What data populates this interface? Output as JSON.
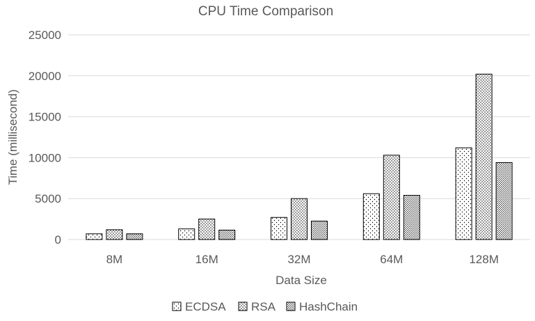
{
  "chart_data": {
    "type": "bar",
    "title": "CPU Time Comparison",
    "xlabel": "Data Size",
    "ylabel": "Time (millisecond)",
    "categories": [
      "8M",
      "16M",
      "32M",
      "64M",
      "128M"
    ],
    "ylim": [
      0,
      25000
    ],
    "yticks": [
      0,
      5000,
      10000,
      15000,
      20000,
      25000
    ],
    "grid": true,
    "legend_position": "bottom",
    "series": [
      {
        "name": "ECDSA",
        "pattern": "sparse-dots",
        "values": [
          700,
          1300,
          2700,
          5600,
          11200
        ]
      },
      {
        "name": "RSA",
        "pattern": "medium-dots",
        "values": [
          1200,
          2500,
          5000,
          10300,
          20200
        ]
      },
      {
        "name": "HashChain",
        "pattern": "dense-dots",
        "values": [
          700,
          1150,
          2250,
          5400,
          9400
        ]
      }
    ]
  }
}
